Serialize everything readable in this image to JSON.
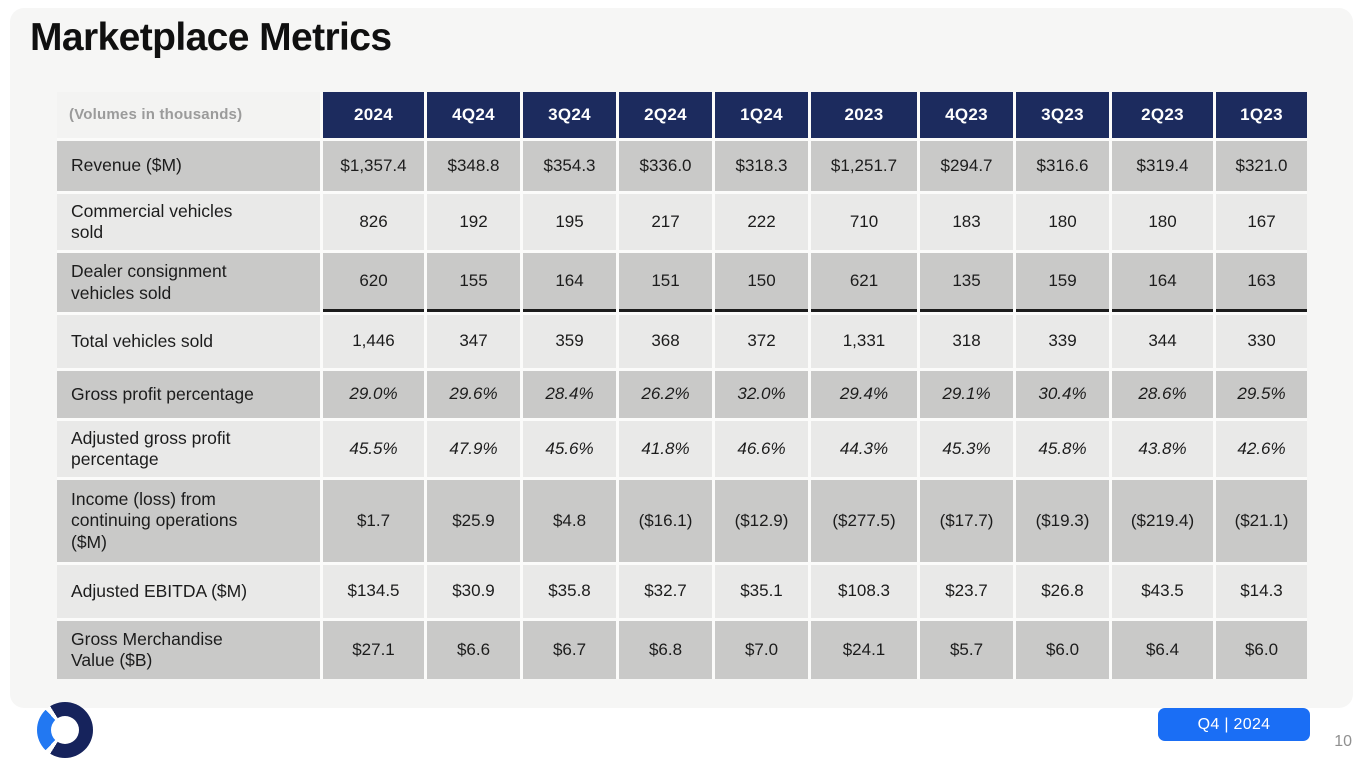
{
  "slide": {
    "title": "Marketplace Metrics",
    "footer_badge": "Q4 | 2024",
    "page_number": "10",
    "logo": "openlane-donut-logo"
  },
  "colors": {
    "header_navy": "#1c2b5e",
    "row_dark_gray": "#c9c9c8",
    "row_light_gray": "#e9e9e8",
    "badge_blue": "#1a6ef5",
    "logo_navy": "#16235c",
    "logo_blue": "#2278f2",
    "slide_background": "#f6f6f5"
  },
  "table": {
    "corner_label": "(Volumes in thousands)",
    "columns": [
      "2024",
      "4Q24",
      "3Q24",
      "2Q24",
      "1Q24",
      "2023",
      "4Q23",
      "3Q23",
      "2Q23",
      "1Q23"
    ],
    "rows": [
      {
        "label": "Revenue ($M)",
        "italic": false,
        "underline_after": false,
        "values": [
          "$1,357.4",
          "$348.8",
          "$354.3",
          "$336.0",
          "$318.3",
          "$1,251.7",
          "$294.7",
          "$316.6",
          "$319.4",
          "$321.0"
        ]
      },
      {
        "label": "Commercial vehicles sold",
        "italic": false,
        "underline_after": false,
        "values": [
          "826",
          "192",
          "195",
          "217",
          "222",
          "710",
          "183",
          "180",
          "180",
          "167"
        ]
      },
      {
        "label": "Dealer consignment vehicles sold",
        "italic": false,
        "underline_after": true,
        "values": [
          "620",
          "155",
          "164",
          "151",
          "150",
          "621",
          "135",
          "159",
          "164",
          "163"
        ]
      },
      {
        "label": "Total vehicles sold",
        "italic": false,
        "underline_after": false,
        "values": [
          "1,446",
          "347",
          "359",
          "368",
          "372",
          "1,331",
          "318",
          "339",
          "344",
          "330"
        ]
      },
      {
        "label": "Gross profit percentage",
        "italic": true,
        "underline_after": false,
        "values": [
          "29.0%",
          "29.6%",
          "28.4%",
          "26.2%",
          "32.0%",
          "29.4%",
          "29.1%",
          "30.4%",
          "28.6%",
          "29.5%"
        ]
      },
      {
        "label": "Adjusted gross profit percentage",
        "italic": true,
        "underline_after": false,
        "values": [
          "45.5%",
          "47.9%",
          "45.6%",
          "41.8%",
          "46.6%",
          "44.3%",
          "45.3%",
          "45.8%",
          "43.8%",
          "42.6%"
        ]
      },
      {
        "label": "Income (loss) from continuing operations ($M)",
        "italic": false,
        "underline_after": false,
        "values": [
          "$1.7",
          "$25.9",
          "$4.8",
          "($16.1)",
          "($12.9)",
          "($277.5)",
          "($17.7)",
          "($19.3)",
          "($219.4)",
          "($21.1)"
        ]
      },
      {
        "label": "Adjusted EBITDA ($M)",
        "italic": false,
        "underline_after": false,
        "values": [
          "$134.5",
          "$30.9",
          "$35.8",
          "$32.7",
          "$35.1",
          "$108.3",
          "$23.7",
          "$26.8",
          "$43.5",
          "$14.3"
        ]
      },
      {
        "label": "Gross Merchandise Value ($B)",
        "italic": false,
        "underline_after": false,
        "values": [
          "$27.1",
          "$6.6",
          "$6.7",
          "$6.8",
          "$7.0",
          "$24.1",
          "$5.7",
          "$6.0",
          "$6.4",
          "$6.0"
        ]
      }
    ]
  }
}
